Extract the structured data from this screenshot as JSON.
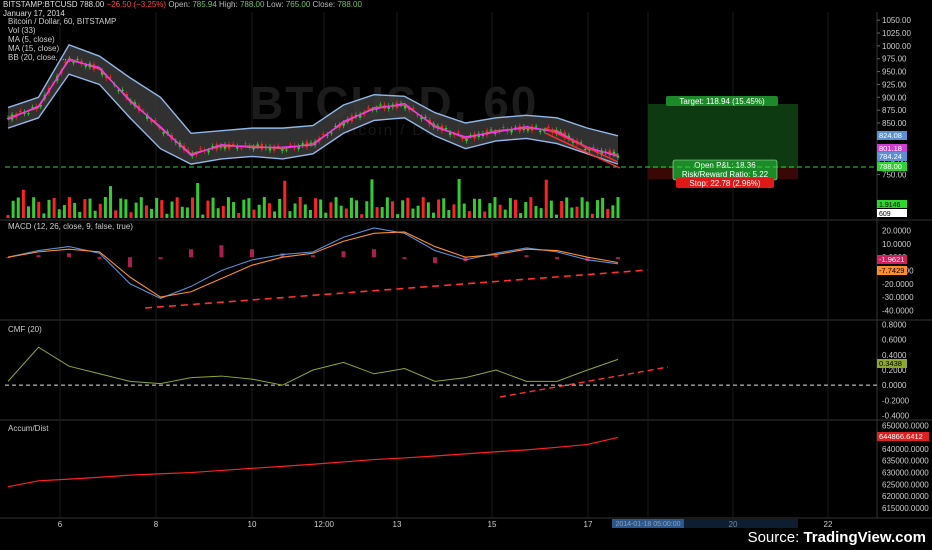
{
  "header": {
    "symbol": "BITSTAMP:BTCUSD",
    "price": "788.00",
    "change": "−26.50 (−3.25%)",
    "open_label": "Open:",
    "open": "785.94",
    "high_label": "High:",
    "high": "788.00",
    "low_label": "Low:",
    "low": "765.00",
    "close_label": "Close:",
    "close": "788.00",
    "date": "January 17, 2014"
  },
  "legend": [
    "Bitcoin / Dollar, 60, BITSTAMP",
    "Vol (33)",
    "MA (5, close)",
    "MA (15, close)",
    "BB (20, close, ..."
  ],
  "watermark": "BTCUSD, 60",
  "watermark_sub": "Bitcoin / Dollar",
  "pane_labels": {
    "macd": "MACD (12, 26, close, 9, false, true)",
    "cmf": "CMF (20)",
    "adl": "Accum/Dist"
  },
  "position": {
    "target": "Target: 118.94 (15.45%)",
    "pnl": "Open P&L: 18.36",
    "rr": "Risk/Reward Ratio: 5.22",
    "stop": "Stop: 22.78 (2.96%)"
  },
  "source": {
    "prefix": "Source: ",
    "brand": "TradingView.com"
  },
  "colors": {
    "bg": "#000000",
    "grid": "#1a1a1a",
    "up": "#33cc33",
    "down": "#ff2222",
    "bb": "#8fb8e8",
    "ma5": "#ff33ff",
    "ma15": "#c06060",
    "macd": "#5b8fd6",
    "signal": "#ff8c2a",
    "cmf": "#8ca82f",
    "adl": "#ff2020",
    "trend": "#ff3030",
    "target_fill": "#0e3a12",
    "stop_fill": "#3a0707"
  },
  "chart_data": {
    "type": "line",
    "x_ticks": [
      "6",
      "8",
      "10",
      "12:00",
      "13",
      "15",
      "17",
      "2014-01-18 05:00:00",
      "20",
      "22"
    ],
    "panes": [
      {
        "name": "price",
        "ylim": [
          743,
          1062
        ],
        "y_ticks": [
          "1050.00",
          "1025.00",
          "1000.00",
          "975.00",
          "950.00",
          "925.00",
          "900.00",
          "875.00",
          "850.00",
          "825.00",
          "800.00",
          "775.00",
          "750.00"
        ],
        "series_x": [
          0,
          3,
          6,
          9,
          12,
          15,
          18,
          21,
          24,
          27,
          30,
          33,
          36,
          39,
          42,
          45,
          48,
          51,
          54,
          57,
          60
        ],
        "price_close": [
          860,
          880,
          975,
          955,
          895,
          840,
          790,
          805,
          805,
          800,
          810,
          850,
          880,
          885,
          845,
          820,
          835,
          840,
          835,
          800,
          788
        ],
        "bb_upper": [
          880,
          900,
          1002,
          980,
          938,
          900,
          830,
          835,
          840,
          840,
          845,
          885,
          905,
          902,
          870,
          850,
          860,
          865,
          860,
          840,
          825
        ],
        "bb_lower": [
          840,
          860,
          945,
          925,
          860,
          800,
          770,
          780,
          785,
          780,
          790,
          830,
          855,
          860,
          825,
          800,
          815,
          820,
          810,
          790,
          770
        ],
        "markers": [
          "824.08",
          "801.18",
          "784.24",
          "788.00"
        ]
      },
      {
        "name": "volume",
        "markers": [
          "1.9146",
          "609"
        ]
      },
      {
        "name": "macd",
        "ylim": [
          -42,
          28
        ],
        "y_ticks": [
          "20.0000",
          "10.0000",
          "0.0000",
          "-10.0000",
          "-20.0000",
          "-30.0000",
          "-40.0000"
        ],
        "macd": [
          0,
          5,
          8,
          3,
          -20,
          -31,
          -22,
          -10,
          -2,
          2,
          4,
          15,
          22,
          18,
          5,
          -2,
          3,
          7,
          4,
          -2,
          -5
        ],
        "signal": [
          0,
          4,
          6,
          4,
          -15,
          -30,
          -26,
          -16,
          -6,
          0,
          3,
          12,
          18,
          19,
          8,
          0,
          2,
          6,
          5,
          0,
          -4
        ],
        "markers": [
          "-1.9621",
          "-7.7429"
        ]
      },
      {
        "name": "cmf",
        "ylim": [
          -0.42,
          0.82
        ],
        "y_ticks": [
          "0.8000",
          "0.6000",
          "0.4000",
          "0.2000",
          "0.0000",
          "-0.2000",
          "-0.4000"
        ],
        "cmf": [
          0.05,
          0.5,
          0.25,
          0.15,
          0.05,
          0.02,
          0.1,
          0.12,
          0.08,
          0.0,
          0.2,
          0.3,
          0.15,
          0.22,
          0.05,
          0.1,
          0.2,
          0.05,
          0.05,
          0.2,
          0.34
        ],
        "markers": [
          "0.3438"
        ]
      },
      {
        "name": "accum_dist",
        "ylim": [
          612000,
          651000
        ],
        "y_ticks": [
          "650000.0000",
          "645000.0000",
          "640000.0000",
          "635000.0000",
          "630000.0000",
          "625000.0000",
          "620000.0000",
          "615000.0000"
        ],
        "adl": [
          624000,
          626500,
          627200,
          628000,
          628900,
          629500,
          630000,
          630900,
          631800,
          632600,
          633500,
          634500,
          635500,
          636200,
          637000,
          637900,
          638800,
          639600,
          640700,
          641900,
          644867
        ],
        "markers": [
          "644866.6412"
        ]
      }
    ]
  }
}
